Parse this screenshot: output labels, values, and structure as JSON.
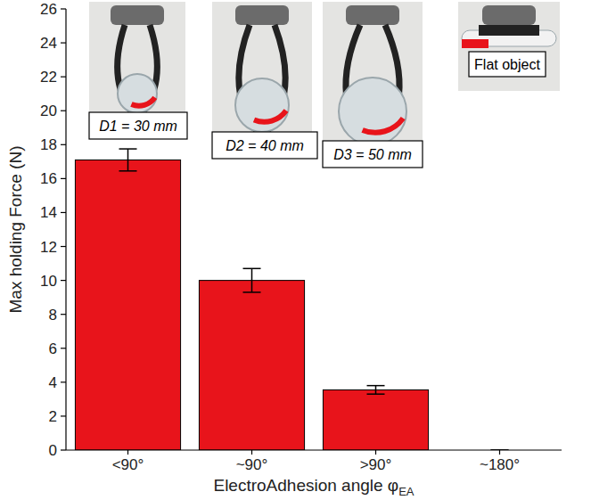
{
  "chart_data": {
    "type": "bar",
    "categories": [
      "<90°",
      "~90°",
      ">90°",
      "~180°"
    ],
    "values": [
      17.1,
      10.0,
      3.55,
      0
    ],
    "errors": [
      0.65,
      0.7,
      0.25,
      0
    ],
    "color": "#e8141b",
    "ylim": [
      0,
      26
    ],
    "yticks": [
      0,
      2,
      4,
      6,
      8,
      10,
      12,
      14,
      16,
      18,
      20,
      22,
      24,
      26
    ],
    "grid": false,
    "x_label": "ElectroAdhesion angle φ",
    "x_label_sub": "EA",
    "y_label": "Max holding Force (N)",
    "annotations": [
      "D1 = 30 mm",
      "D2 = 40 mm",
      "D3 = 50 mm",
      "Flat object"
    ]
  }
}
